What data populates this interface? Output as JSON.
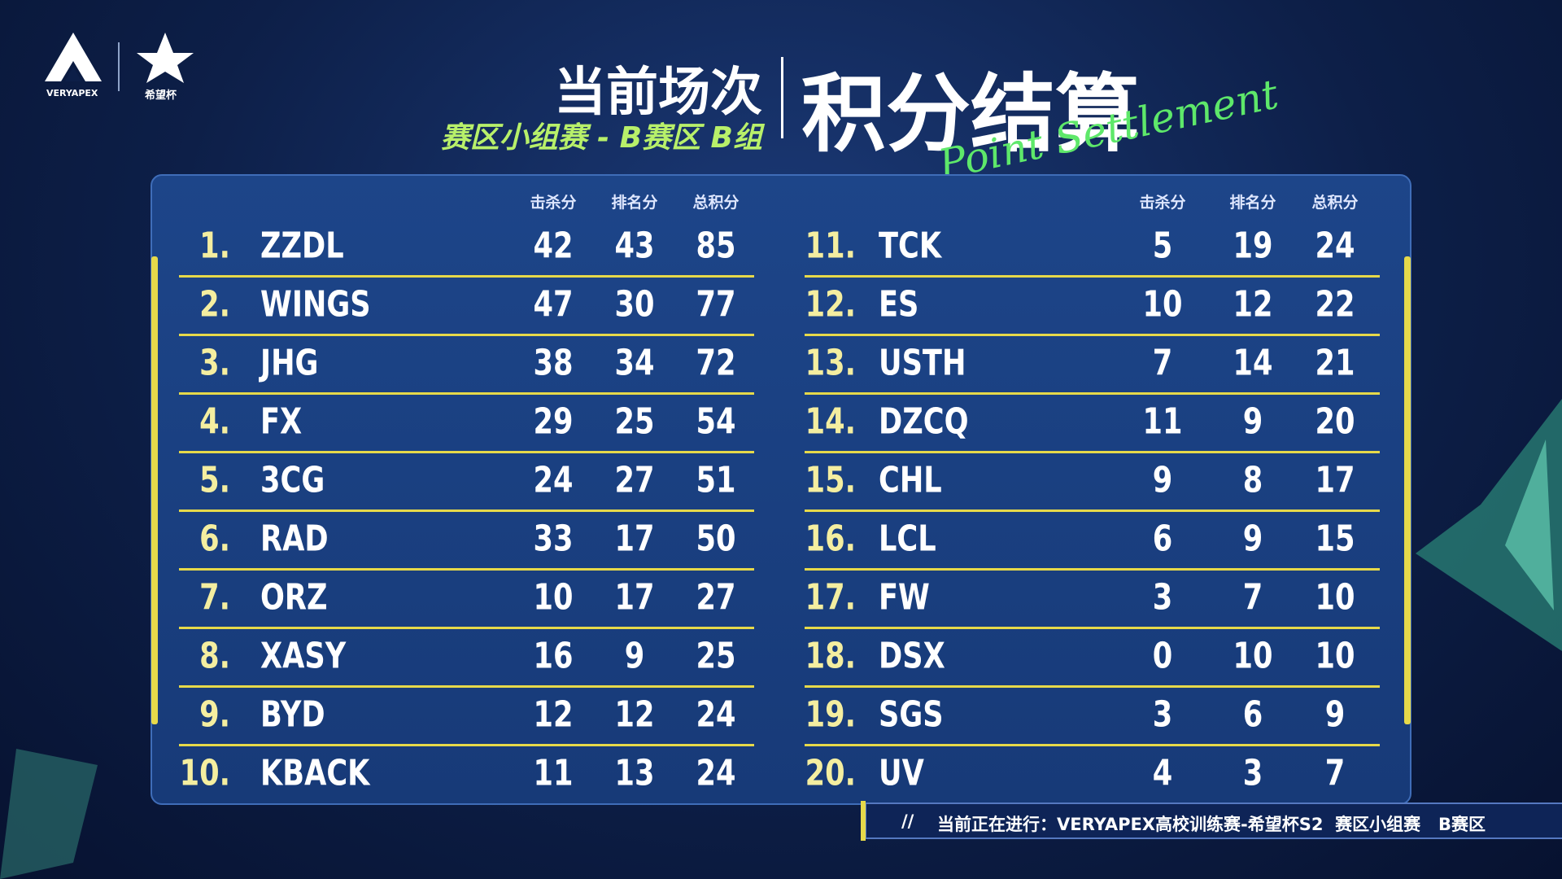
{
  "logos": {
    "brand": "VERYAPEX",
    "cup": "希望杯"
  },
  "header": {
    "title": "当前场次",
    "subtitle": "赛区小组赛 - B赛区 B组",
    "main_title": "积分结算",
    "script_title": "Point Settlement"
  },
  "table": {
    "columns": [
      "击杀分",
      "排名分",
      "总积分"
    ],
    "left": [
      [
        "1.",
        "ZZDL",
        42,
        43,
        85
      ],
      [
        "2.",
        "WINGS",
        47,
        30,
        77
      ],
      [
        "3.",
        "JHG",
        38,
        34,
        72
      ],
      [
        "4.",
        "FX",
        29,
        25,
        54
      ],
      [
        "5.",
        "3CG",
        24,
        27,
        51
      ],
      [
        "6.",
        "RAD",
        33,
        17,
        50
      ],
      [
        "7.",
        "ORZ",
        10,
        17,
        27
      ],
      [
        "8.",
        "XASY",
        16,
        9,
        25
      ],
      [
        "9.",
        "BYD",
        12,
        12,
        24
      ],
      [
        "10.",
        "KBACK",
        11,
        13,
        24
      ]
    ],
    "right": [
      [
        "11.",
        "TCK",
        5,
        19,
        24
      ],
      [
        "12.",
        "ES",
        10,
        12,
        22
      ],
      [
        "13.",
        "USTH",
        7,
        14,
        21
      ],
      [
        "14.",
        "DZCQ",
        11,
        9,
        20
      ],
      [
        "15.",
        "CHL",
        9,
        8,
        17
      ],
      [
        "16.",
        "LCL",
        6,
        9,
        15
      ],
      [
        "17.",
        "FW",
        3,
        7,
        10
      ],
      [
        "18.",
        "DSX",
        0,
        10,
        10
      ],
      [
        "19.",
        "SGS",
        3,
        6,
        9
      ],
      [
        "20.",
        "UV",
        4,
        3,
        7
      ]
    ]
  },
  "footer": {
    "marker": "//",
    "text": "当前正在进行：VERYAPEX高校训练赛-希望杯S2  赛区小组赛   B赛区"
  }
}
